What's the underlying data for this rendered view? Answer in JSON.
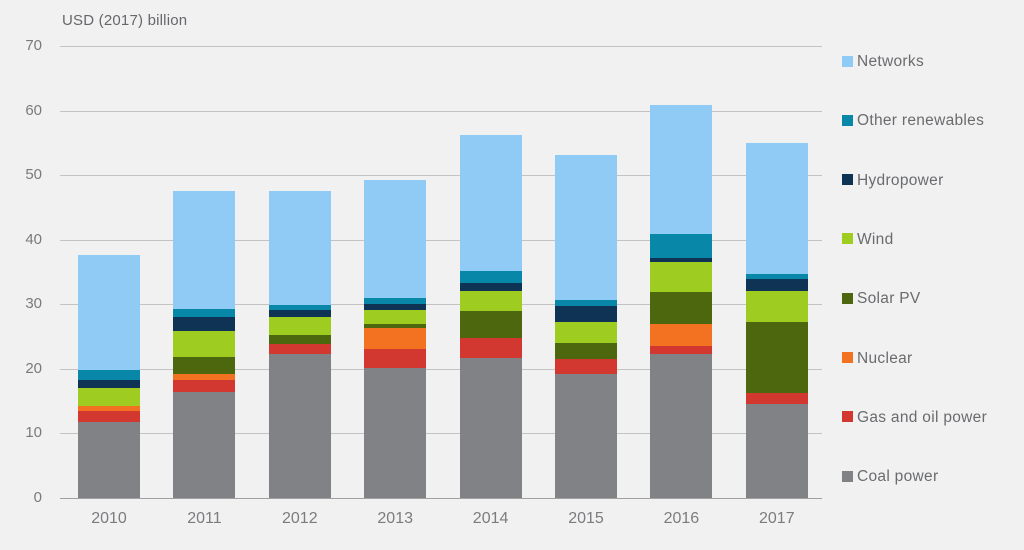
{
  "title": "USD (2017) billion",
  "chart_data": {
    "type": "bar",
    "stacked": true,
    "title": "USD (2017) billion",
    "categories": [
      "2010",
      "2011",
      "2012",
      "2013",
      "2014",
      "2015",
      "2016",
      "2017"
    ],
    "series": [
      {
        "name": "Coal power",
        "color": "#818286",
        "values": [
          11.7,
          16.4,
          22.3,
          20.2,
          21.7,
          19.2,
          22.3,
          14.5
        ]
      },
      {
        "name": "Gas and oil power",
        "color": "#d2382f",
        "values": [
          1.7,
          1.8,
          1.5,
          2.9,
          3.1,
          2.3,
          1.3,
          1.7
        ]
      },
      {
        "name": "Nuclear",
        "color": "#f37221",
        "values": [
          0.9,
          1.0,
          0,
          3.2,
          0,
          0,
          3.4,
          0
        ]
      },
      {
        "name": "Solar PV",
        "color": "#4d670e",
        "values": [
          0,
          2.6,
          1.4,
          0.7,
          4.2,
          2.5,
          4.9,
          11.1
        ]
      },
      {
        "name": "Wind",
        "color": "#9fcc20",
        "values": [
          2.8,
          4.1,
          2.8,
          2.1,
          3.0,
          3.2,
          4.6,
          4.8
        ]
      },
      {
        "name": "Hydropower",
        "color": "#0e3354",
        "values": [
          1.1,
          2.2,
          1.1,
          0.9,
          1.3,
          2.6,
          0.6,
          1.8
        ]
      },
      {
        "name": "Other renewables",
        "color": "#0887a9",
        "values": [
          1.6,
          1.2,
          0.8,
          0.9,
          1.9,
          0.9,
          3.8,
          0.8
        ]
      },
      {
        "name": "Networks",
        "color": "#8fcbf4",
        "values": [
          17.8,
          18.3,
          17.7,
          18.4,
          21.0,
          22.4,
          19.9,
          20.3
        ]
      }
    ],
    "totals": [
      37.6,
      47.6,
      47.6,
      49.3,
      56.2,
      53.1,
      60.8,
      55.0
    ],
    "legend": [
      "Networks",
      "Other renewables",
      "Hydropower",
      "Wind",
      "Solar PV",
      "Nuclear",
      "Gas and oil power",
      "Coal power"
    ],
    "legend_position": "right",
    "xlabel": "",
    "ylabel": "USD (2017) billion",
    "ylim": [
      0,
      70
    ],
    "yticks": [
      0,
      10,
      20,
      30,
      40,
      50,
      60,
      70
    ],
    "grid": true,
    "background": "#f1f1f2"
  }
}
